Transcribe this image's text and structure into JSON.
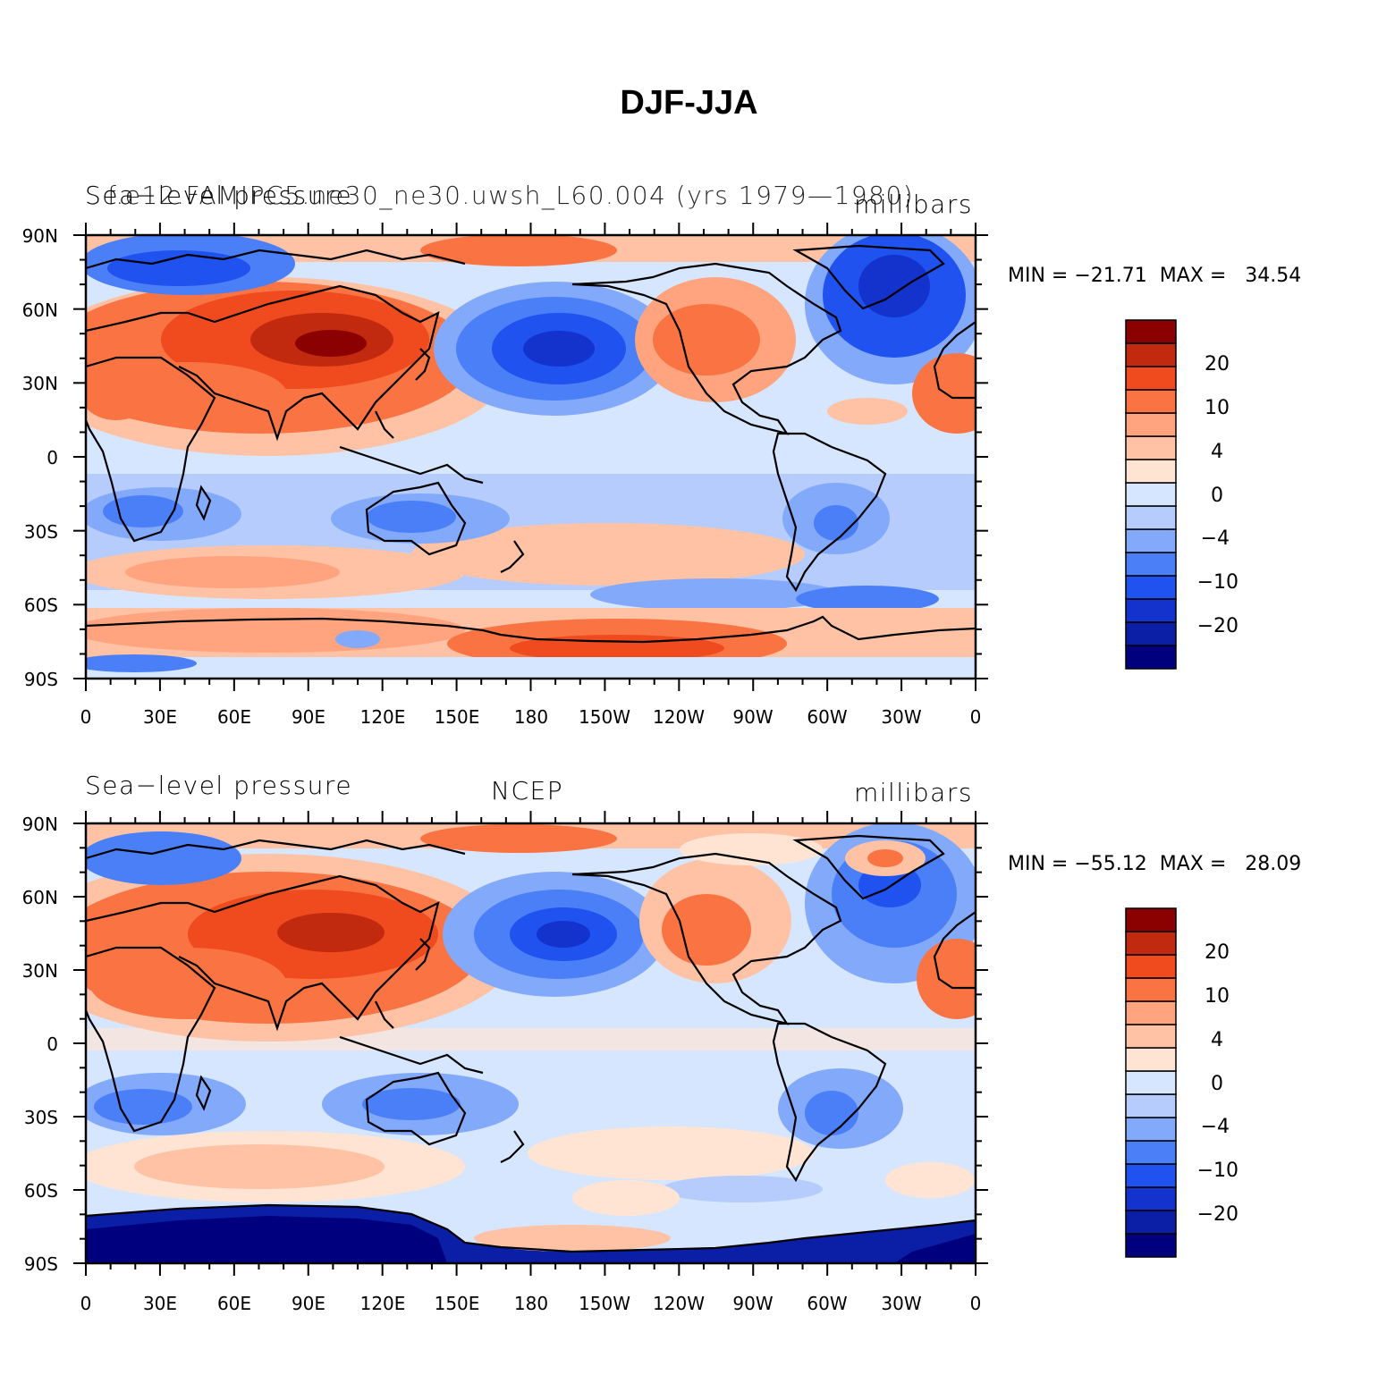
{
  "title": "DJF-JJA",
  "colors": {
    "levels": [
      "#00007f",
      "#0a1fa6",
      "#1333cc",
      "#1f52ef",
      "#4a7ff7",
      "#83a9fb",
      "#b5ccfd",
      "#d6e6ff",
      "#ffe4d4",
      "#ffc2a5",
      "#ffa47f",
      "#f97442",
      "#f04a1f",
      "#c22a0f",
      "#8b0000"
    ],
    "coast": "#000000"
  },
  "colorbar_labels": [
    "20",
    "10",
    "4",
    "0",
    "−4",
    "−10",
    "−20"
  ],
  "lat_ticks": [
    "90N",
    "60N",
    "30N",
    "0",
    "30S",
    "60S",
    "90S"
  ],
  "lon_ticks": [
    "0",
    "30E",
    "60E",
    "90E",
    "120E",
    "150E",
    "180",
    "150W",
    "120W",
    "90W",
    "60W",
    "30W",
    "0"
  ],
  "panels": {
    "top": {
      "left_label": "Sea−level pressure",
      "center_label": "f.e12.FAMIPC5.ne30_ne30.uwsh_L60.004 (yrs 1979—1980)",
      "units": "millibars",
      "minmax": "MIN = −21.71  MAX =   34.54"
    },
    "bottom": {
      "left_label": "Sea−level pressure",
      "center_label": "NCEP",
      "units": "millibars",
      "minmax": "MIN = −55.12  MAX =   28.09"
    }
  }
}
